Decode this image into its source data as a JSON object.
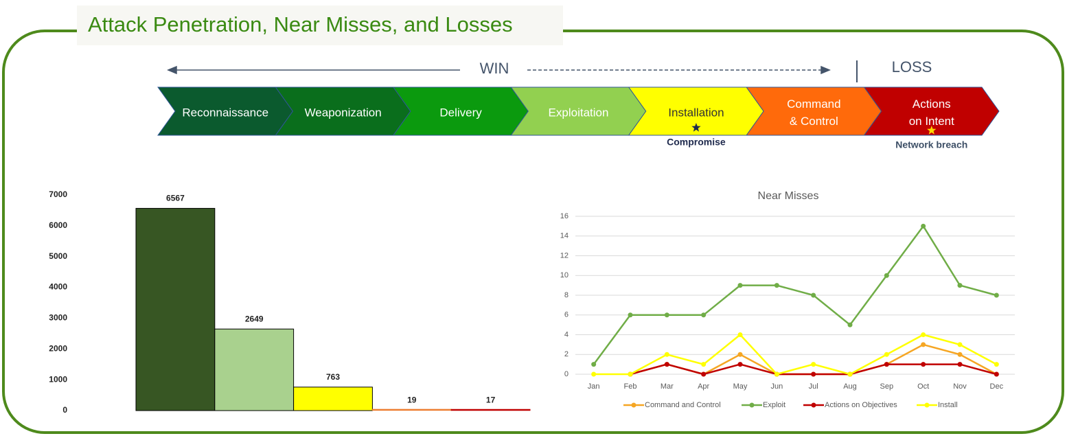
{
  "title": "Attack Penetration, Near Misses, and Losses",
  "banner": {
    "win": "WIN",
    "loss": "LOSS"
  },
  "stages": [
    {
      "lines": [
        "Reconnaissance"
      ],
      "color": "#0b5a2e",
      "text_color": "#ffffff"
    },
    {
      "lines": [
        "Weaponization"
      ],
      "color": "#0a6e1c",
      "text_color": "#ffffff"
    },
    {
      "lines": [
        "Delivery"
      ],
      "color": "#0b9a0e",
      "text_color": "#ffffff"
    },
    {
      "lines": [
        "Exploitation"
      ],
      "color": "#92d050",
      "text_color": "#ffffff"
    },
    {
      "lines": [
        "Installation"
      ],
      "color": "#ffff00",
      "text_color": "#333333",
      "note": "Compromise",
      "star_color": "#1f2a4d"
    },
    {
      "lines": [
        "Command",
        "& Control"
      ],
      "color": "#ff6a0b",
      "text_color": "#ffffff"
    },
    {
      "lines": [
        "Actions",
        "on Intent"
      ],
      "color": "#c00000",
      "text_color": "#ffffff",
      "note": "Network breach",
      "star_color": "#ffd700"
    }
  ],
  "chart_data": [
    {
      "type": "bar",
      "values": [
        6567,
        2649,
        763,
        19,
        17
      ],
      "colors": [
        "#375623",
        "#a9d18e",
        "#ffff00",
        "#ed7d31",
        "#c00000"
      ],
      "ylim": [
        0,
        7000
      ],
      "yticks": [
        0,
        1000,
        2000,
        3000,
        4000,
        5000,
        6000,
        7000
      ],
      "grid": false
    },
    {
      "type": "line",
      "title": "Near Misses",
      "categories": [
        "Jan",
        "Feb",
        "Mar",
        "Apr",
        "May",
        "Jun",
        "Jul",
        "Aug",
        "Sep",
        "Oct",
        "Nov",
        "Dec"
      ],
      "series": [
        {
          "name": "Command and Control",
          "color": "#f5a623",
          "values": [
            null,
            0,
            1,
            0,
            2,
            0,
            0,
            0,
            1,
            3,
            2,
            0
          ]
        },
        {
          "name": "Exploit",
          "color": "#70ad47",
          "values": [
            1,
            6,
            6,
            6,
            9,
            9,
            8,
            5,
            10,
            15,
            9,
            8
          ]
        },
        {
          "name": "Actions on Objectives",
          "color": "#c00000",
          "values": [
            null,
            0,
            1,
            0,
            1,
            0,
            0,
            0,
            1,
            1,
            1,
            0
          ]
        },
        {
          "name": "Install",
          "color": "#ffff00",
          "values": [
            0,
            0,
            2,
            1,
            4,
            0,
            1,
            0,
            2,
            4,
            3,
            1
          ]
        }
      ],
      "ylim": [
        0,
        16
      ],
      "yticks": [
        0,
        2,
        4,
        6,
        8,
        10,
        12,
        14,
        16
      ],
      "grid": true,
      "legend": "bottom"
    }
  ]
}
